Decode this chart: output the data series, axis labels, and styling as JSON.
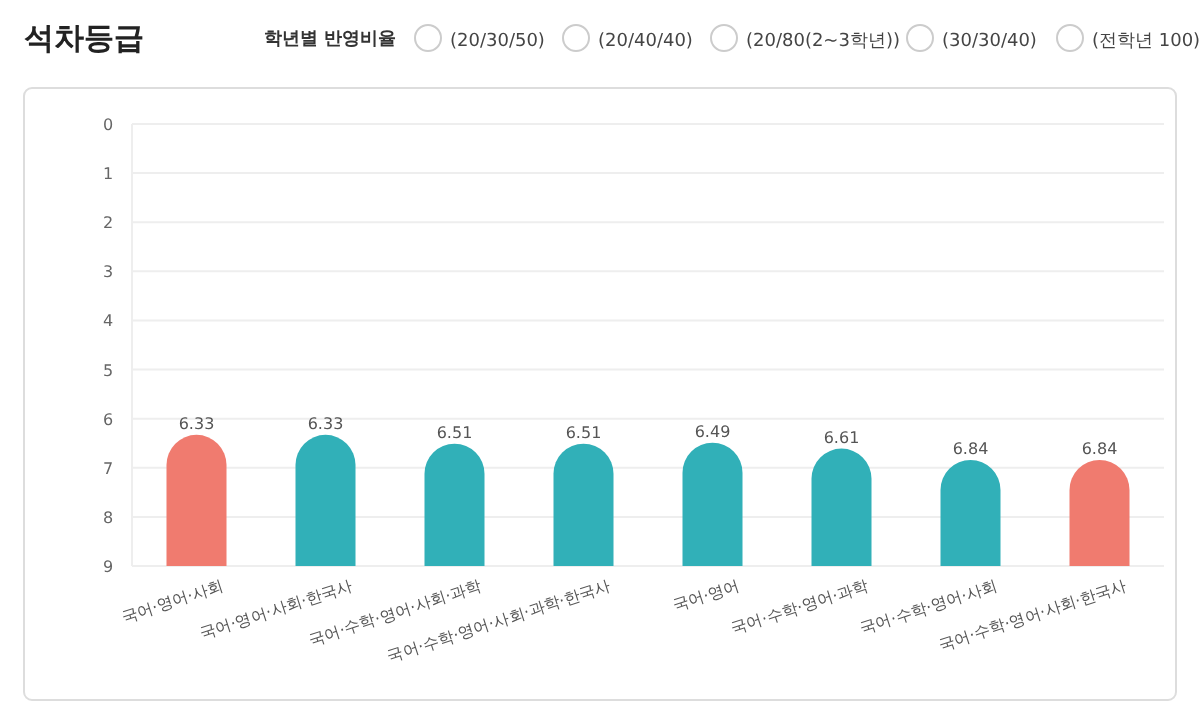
{
  "chart_data": {
    "type": "bar",
    "title": "석차등급",
    "annotations": [
      "학년별 반영비율",
      "(20/30/50)",
      "(20/40/40)",
      "(20/80(2~3학년))",
      "(30/30/40)",
      "(전학년 100)"
    ],
    "categories": [
      "국어·영어·사회",
      "국어·영어·사회·한국사",
      "국어·수학·영어·사회·과학",
      "국어·수학·영어·사회·과학·한국사",
      "국어·영어",
      "국어·수학·영어·과학",
      "국어·수학·영어·사회",
      "국어·수학·영어·사회·한국사"
    ],
    "base": [
      9,
      9,
      9,
      9,
      9,
      9,
      9,
      9
    ],
    "values": [
      -2.67,
      -2.67,
      -2.49,
      -2.49,
      -2.51,
      -2.39,
      -2.16,
      -2.16
    ],
    "value_labels": [
      "6.33",
      "6.33",
      "6.51",
      "6.51",
      "6.49",
      "6.61",
      "6.84",
      "6.84"
    ],
    "colors": [
      "#f07b6f",
      "#31b0b8",
      "#31b0b8",
      "#31b0b8",
      "#31b0b8",
      "#31b0b8",
      "#31b0b8",
      "#f07b6f"
    ],
    "ylim": [
      9,
      0
    ],
    "yticks": [
      0,
      1,
      2,
      3,
      4,
      5,
      6,
      7,
      8,
      9
    ],
    "grid": "y"
  }
}
